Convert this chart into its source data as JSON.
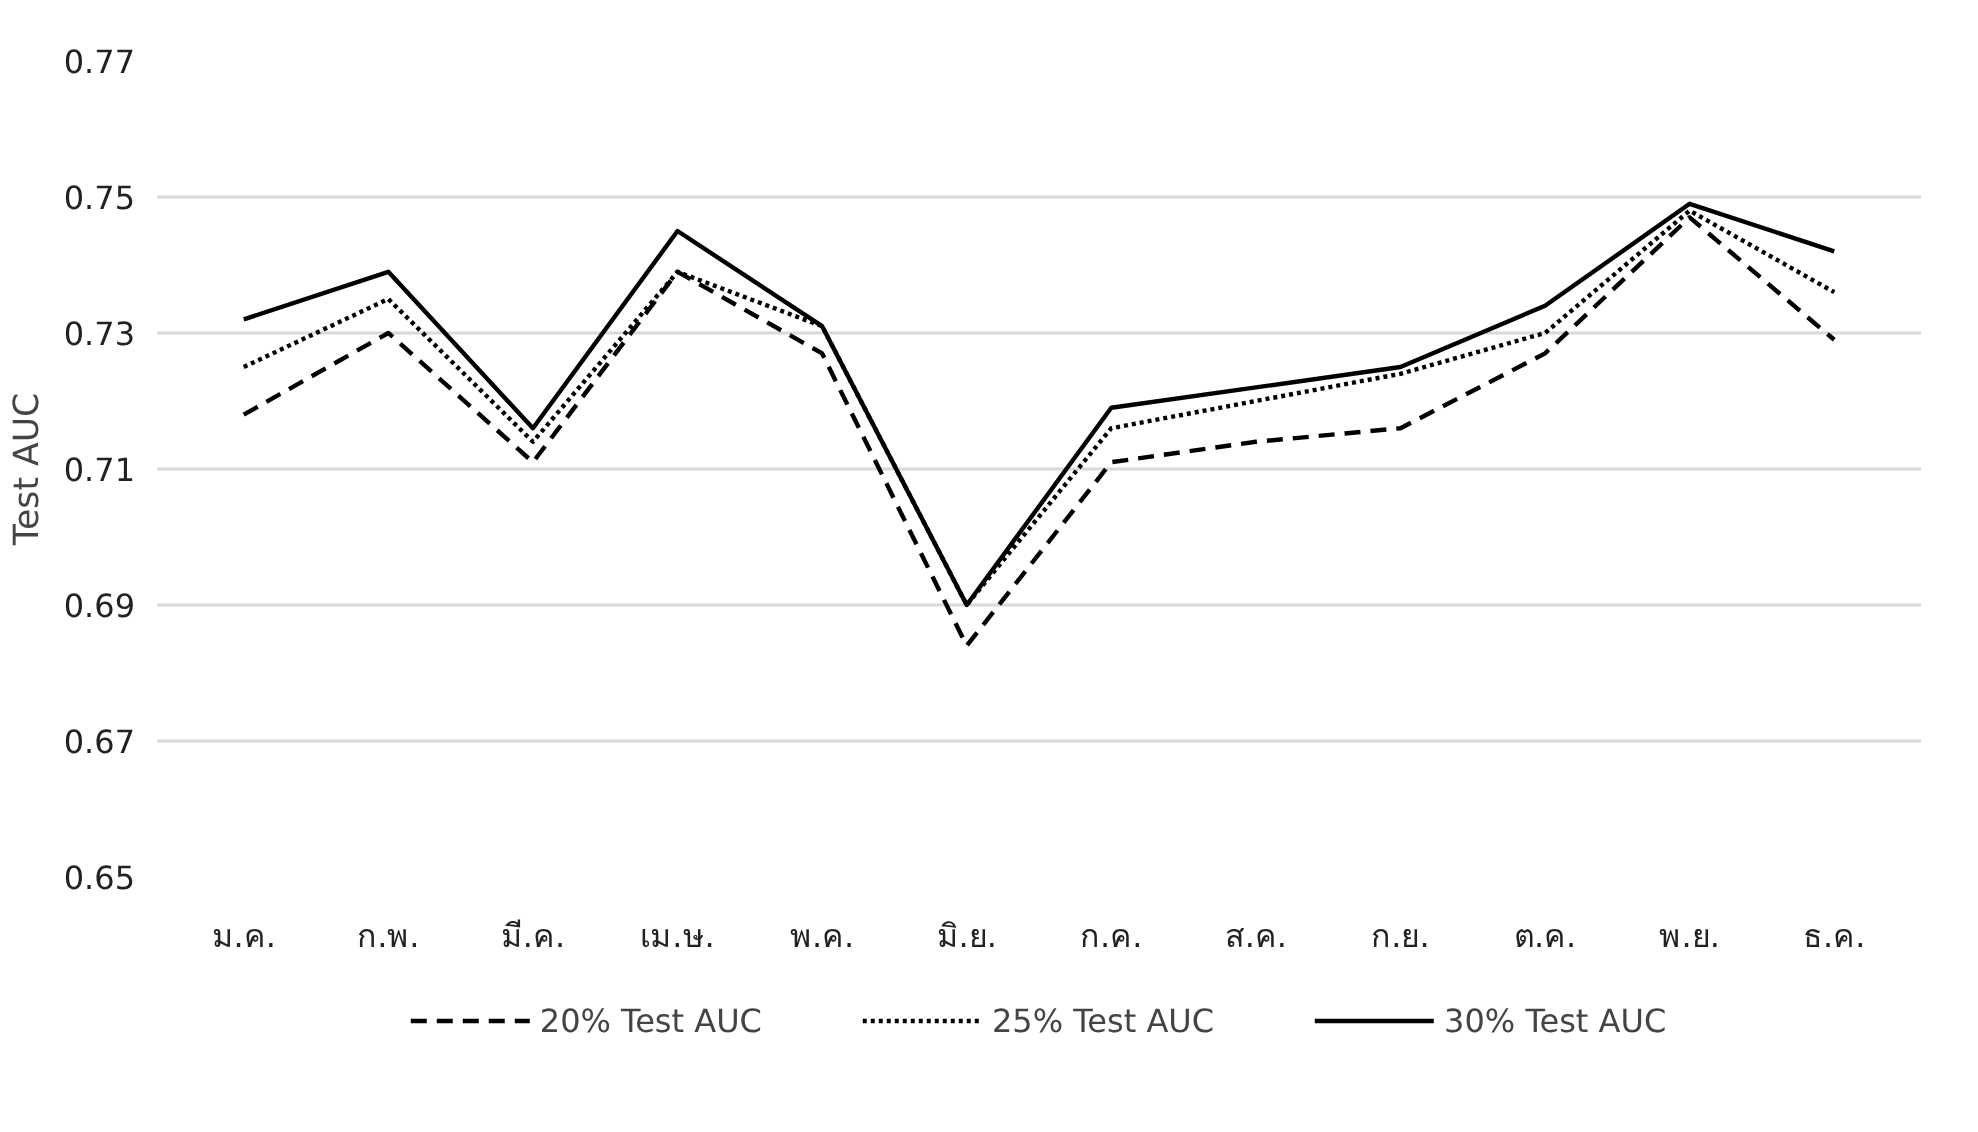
{
  "chart_data": {
    "type": "line",
    "ylabel": "Test AUC",
    "categories": [
      "ม.ค.",
      "ก.พ.",
      "มี.ค.",
      "เม.ษ.",
      "พ.ค.",
      "มิ.ย.",
      "ก.ค.",
      "ส.ค.",
      "ก.ย.",
      "ต.ค.",
      "พ.ย.",
      "ธ.ค."
    ],
    "series": [
      {
        "name": "20% Test AUC",
        "color": "#000000",
        "line_style": "dashed",
        "values": [
          0.718,
          0.73,
          0.711,
          0.739,
          0.727,
          0.684,
          0.711,
          0.714,
          0.716,
          0.727,
          0.747,
          0.729
        ]
      },
      {
        "name": "25% Test AUC",
        "color": "#000000",
        "line_style": "dotted",
        "values": [
          0.725,
          0.735,
          0.714,
          0.739,
          0.731,
          0.69,
          0.716,
          0.72,
          0.724,
          0.73,
          0.748,
          0.736
        ]
      },
      {
        "name": "30% Test AUC",
        "color": "#000000",
        "line_style": "solid",
        "values": [
          0.732,
          0.739,
          0.716,
          0.745,
          0.731,
          0.69,
          0.719,
          0.722,
          0.725,
          0.734,
          0.749,
          0.742
        ]
      }
    ],
    "ylim": [
      0.65,
      0.77
    ],
    "yticks": [
      {
        "value": 0.65,
        "label": "0.65"
      },
      {
        "value": 0.67,
        "label": "0.67"
      },
      {
        "value": 0.69,
        "label": "0.69"
      },
      {
        "value": 0.71,
        "label": "0.71"
      },
      {
        "value": 0.73,
        "label": "0.73"
      },
      {
        "value": 0.75,
        "label": "0.75"
      },
      {
        "value": 0.77,
        "label": "0.77"
      }
    ],
    "grid": "y",
    "legend": "bottom",
    "marker": "none"
  }
}
